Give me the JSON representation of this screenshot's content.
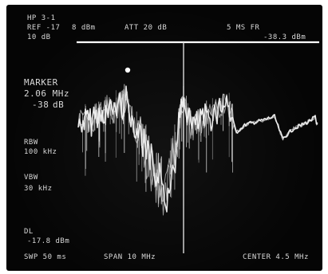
{
  "analyzer": {
    "model": "HP 3-1",
    "ref_label": "REF -17",
    "ref_unit": "8 dBm",
    "atten_label": "ATT 20 dB",
    "scale_label": "10 dB",
    "marker_top_readout": "5 MS FR",
    "marker_top_level": "-38.3 dBm",
    "marker_label": "MARKER",
    "marker_freq": "2.06 MHz",
    "marker_level": "-38",
    "marker_unit": "dB",
    "rbw_label": "RBW",
    "rbw_value": "100 kHz",
    "vbw_label": "VBW",
    "vbw_value": "30 kHz",
    "dl_label": "DL",
    "dl_value": "-17.8 dBm",
    "sweep_label": "SWP 50 ms",
    "span_label": "SPAN 10 MHz",
    "center_label": "CENTER 4.5 MHz"
  },
  "colors": {
    "screen": "#050505",
    "trace": "#f2f2f2",
    "text": "#d8d8d8",
    "reference_line": "#ffffff"
  }
}
